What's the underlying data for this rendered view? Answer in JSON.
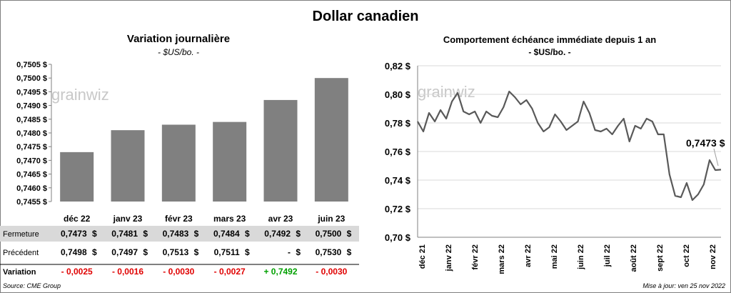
{
  "title": "Dollar canadien",
  "left_chart": {
    "title": "Variation  journalière",
    "subtitle": "- $US/bo. -",
    "watermark": "grainwiz"
  },
  "right_chart": {
    "title": "Comportement échéance immédiate depuis 1 an",
    "subtitle": "- $US/bo. -",
    "watermark": "grainwiz",
    "last_value_label": "0,7473 $"
  },
  "table": {
    "rows": [
      {
        "label": "Fermeture",
        "cells": [
          [
            "0,7473",
            "$"
          ],
          [
            "0,7481",
            "$"
          ],
          [
            "0,7483",
            "$"
          ],
          [
            "0,7484",
            "$"
          ],
          [
            "0,7492",
            "$"
          ],
          [
            "0,7500",
            "$"
          ]
        ]
      },
      {
        "label": "Précédent",
        "cells": [
          [
            "0,7498",
            "$"
          ],
          [
            "0,7497",
            "$"
          ],
          [
            "0,7513",
            "$"
          ],
          [
            "0,7511",
            "$"
          ],
          [
            "-",
            "$"
          ],
          [
            "0,7530",
            "$"
          ]
        ]
      }
    ],
    "variation": {
      "label": "Variation",
      "values": [
        "- 0,0025",
        "- 0,0016",
        "- 0,0030",
        "- 0,0027",
        "+ 0,7492",
        "- 0,0030"
      ]
    }
  },
  "footer": {
    "source": "Source: CME Group",
    "updated": "Mise à jour: ven 25 nov 2022"
  },
  "colors": {
    "bar": "#808080",
    "line": "#595959",
    "negative": "#e00000",
    "positive": "#00a000",
    "row_shade": "#d9d9d9"
  },
  "chart_data": [
    {
      "type": "bar",
      "title": "Variation  journalière",
      "subtitle": "- $US/bo. -",
      "categories": [
        "déc 22",
        "janv 23",
        "févr 23",
        "mars 23",
        "avr 23",
        "juin 23"
      ],
      "values": [
        0.7473,
        0.7481,
        0.7483,
        0.7484,
        0.7492,
        0.75
      ],
      "ylim": [
        0.7455,
        0.7505
      ],
      "yticks": [
        0.7455,
        0.746,
        0.7465,
        0.747,
        0.7475,
        0.748,
        0.7485,
        0.749,
        0.7495,
        0.75,
        0.7505
      ],
      "ytick_labels": [
        "0,7455 $",
        "0,7460 $",
        "0,7465 $",
        "0,7470 $",
        "0,7475 $",
        "0,7480 $",
        "0,7485 $",
        "0,7490 $",
        "0,7495 $",
        "0,7500 $",
        "0,7505 $"
      ],
      "xlabel": "",
      "ylabel": ""
    },
    {
      "type": "line",
      "title": "Comportement échéance immédiate depuis 1 an",
      "subtitle": "- $US/bo. -",
      "ylim": [
        0.7,
        0.82
      ],
      "yticks": [
        0.7,
        0.72,
        0.74,
        0.76,
        0.78,
        0.8,
        0.82
      ],
      "ytick_labels": [
        "0,70 $",
        "0,72 $",
        "0,74 $",
        "0,76 $",
        "0,78 $",
        "0,80 $",
        "0,82 $"
      ],
      "xtick_labels": [
        "déc 21",
        "janv 22",
        "févr 22",
        "mars 22",
        "avr 22",
        "mai 22",
        "juin 22",
        "juil 22",
        "août 22",
        "sept 22",
        "oct 22",
        "nov 22"
      ],
      "x_range": [
        0,
        51
      ],
      "series": [
        {
          "name": "Dollar canadien",
          "values": [
            0.781,
            0.774,
            0.787,
            0.781,
            0.789,
            0.783,
            0.795,
            0.801,
            0.788,
            0.786,
            0.788,
            0.78,
            0.788,
            0.785,
            0.784,
            0.791,
            0.802,
            0.798,
            0.793,
            0.796,
            0.79,
            0.78,
            0.774,
            0.777,
            0.786,
            0.781,
            0.775,
            0.778,
            0.781,
            0.795,
            0.787,
            0.775,
            0.774,
            0.776,
            0.772,
            0.778,
            0.783,
            0.767,
            0.778,
            0.776,
            0.783,
            0.781,
            0.772,
            0.772,
            0.744,
            0.729,
            0.728,
            0.738,
            0.726,
            0.73,
            0.737,
            0.754,
            0.747,
            0.7473
          ]
        }
      ]
    }
  ]
}
